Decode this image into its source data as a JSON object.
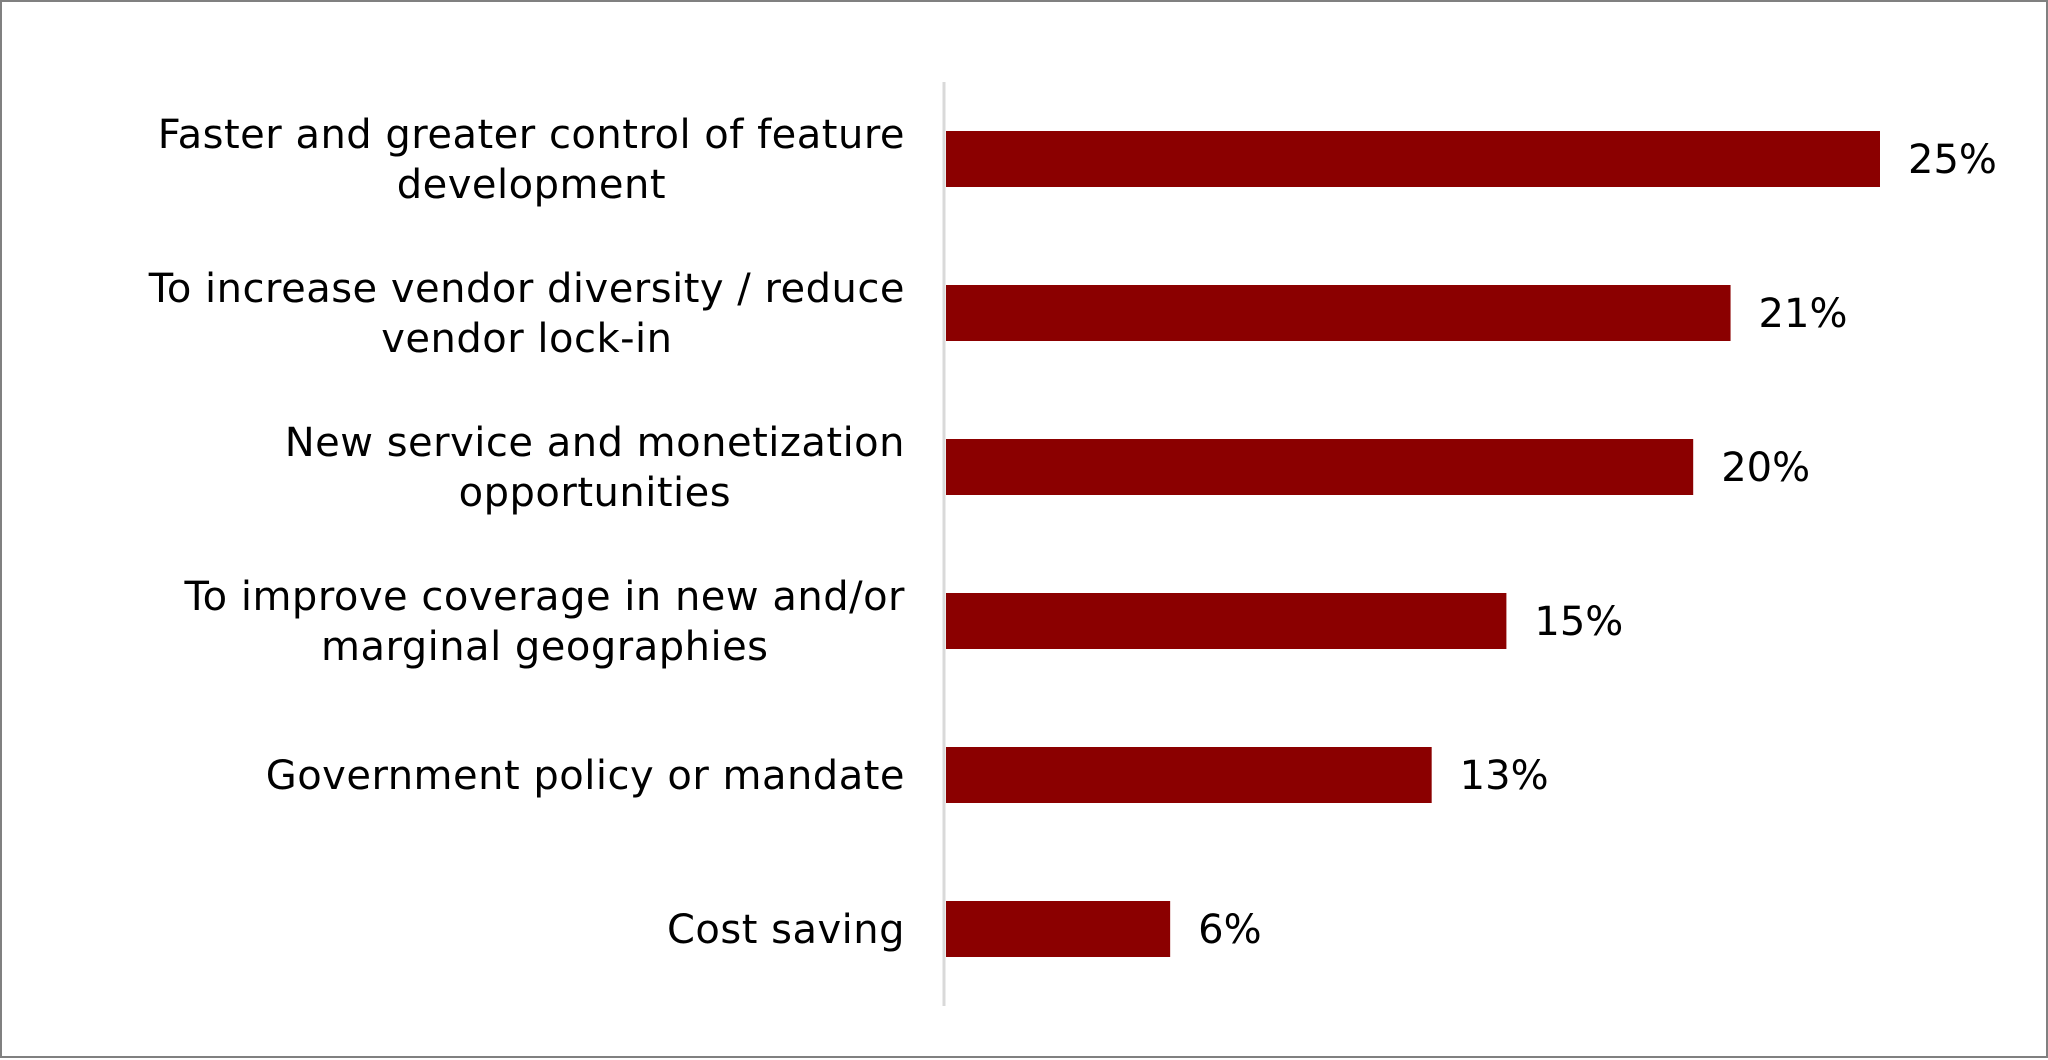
{
  "chart_data": {
    "type": "bar",
    "orientation": "horizontal",
    "categories": [
      [
        "Faster and greater control of feature",
        "development"
      ],
      [
        "To increase vendor diversity / reduce",
        "vendor lock-in"
      ],
      [
        "New service and monetization",
        "opportunities"
      ],
      [
        "To improve coverage in new and/or",
        "marginal geographies"
      ],
      [
        "Government policy or mandate"
      ],
      [
        "Cost saving"
      ]
    ],
    "values": [
      25,
      21,
      20,
      15,
      13,
      6
    ],
    "value_labels": [
      "25%",
      "21%",
      "20%",
      "15%",
      "13%",
      "6%"
    ],
    "title": "",
    "xlabel": "",
    "ylabel": "",
    "grid": false,
    "legend": "none",
    "bar_color": "#8B0000",
    "axis_color": "#D9D9D9",
    "frame_color": "#808080"
  }
}
